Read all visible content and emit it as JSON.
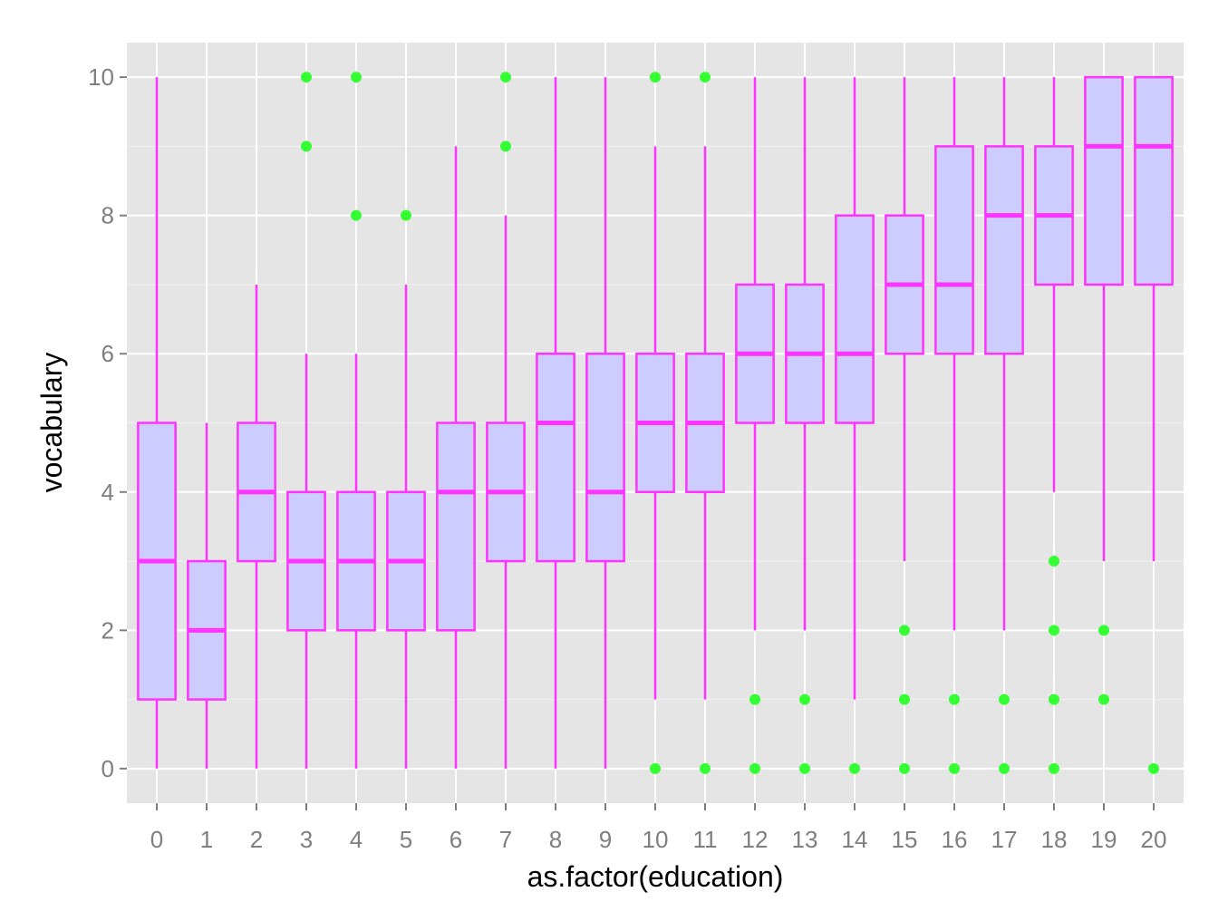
{
  "chart_data": {
    "type": "boxplot",
    "xlabel": "as.factor(education)",
    "ylabel": "vocabulary",
    "ylim": [
      -0.5,
      10.5
    ],
    "y_ticks": [
      0,
      2,
      4,
      6,
      8,
      10
    ],
    "grid": true,
    "colors": {
      "panel_background": "#e5e5e5",
      "grid_major": "#ffffff",
      "grid_minor": "#f2f2f2",
      "box_fill": "#ccccff",
      "box_line": "#ff33ff",
      "outlier": "#33ff33"
    },
    "categories": [
      "0",
      "1",
      "2",
      "3",
      "4",
      "5",
      "6",
      "7",
      "8",
      "9",
      "10",
      "11",
      "12",
      "13",
      "14",
      "15",
      "16",
      "17",
      "18",
      "19",
      "20"
    ],
    "boxes": [
      {
        "x": "0",
        "lower_whisker": 0,
        "q1": 1,
        "median": 3,
        "q3": 5,
        "upper_whisker": 10,
        "outliers": []
      },
      {
        "x": "1",
        "lower_whisker": 0,
        "q1": 1,
        "median": 2,
        "q3": 3,
        "upper_whisker": 5,
        "outliers": []
      },
      {
        "x": "2",
        "lower_whisker": 0,
        "q1": 3,
        "median": 4,
        "q3": 5,
        "upper_whisker": 7,
        "outliers": []
      },
      {
        "x": "3",
        "lower_whisker": 0,
        "q1": 2,
        "median": 3,
        "q3": 4,
        "upper_whisker": 6,
        "outliers": [
          9,
          10
        ]
      },
      {
        "x": "4",
        "lower_whisker": 0,
        "q1": 2,
        "median": 3,
        "q3": 4,
        "upper_whisker": 6,
        "outliers": [
          8,
          10
        ]
      },
      {
        "x": "5",
        "lower_whisker": 0,
        "q1": 2,
        "median": 3,
        "q3": 4,
        "upper_whisker": 7,
        "outliers": [
          8
        ]
      },
      {
        "x": "6",
        "lower_whisker": 0,
        "q1": 2,
        "median": 4,
        "q3": 5,
        "upper_whisker": 9,
        "outliers": []
      },
      {
        "x": "7",
        "lower_whisker": 0,
        "q1": 3,
        "median": 4,
        "q3": 5,
        "upper_whisker": 8,
        "outliers": [
          9,
          10
        ]
      },
      {
        "x": "8",
        "lower_whisker": 0,
        "q1": 3,
        "median": 5,
        "q3": 6,
        "upper_whisker": 10,
        "outliers": []
      },
      {
        "x": "9",
        "lower_whisker": 0,
        "q1": 3,
        "median": 4,
        "q3": 6,
        "upper_whisker": 10,
        "outliers": []
      },
      {
        "x": "10",
        "lower_whisker": 1,
        "q1": 4,
        "median": 5,
        "q3": 6,
        "upper_whisker": 9,
        "outliers": [
          0,
          10
        ]
      },
      {
        "x": "11",
        "lower_whisker": 1,
        "q1": 4,
        "median": 5,
        "q3": 6,
        "upper_whisker": 9,
        "outliers": [
          0,
          10
        ]
      },
      {
        "x": "12",
        "lower_whisker": 2,
        "q1": 5,
        "median": 6,
        "q3": 7,
        "upper_whisker": 10,
        "outliers": [
          0,
          1
        ]
      },
      {
        "x": "13",
        "lower_whisker": 2,
        "q1": 5,
        "median": 6,
        "q3": 7,
        "upper_whisker": 10,
        "outliers": [
          0,
          1
        ]
      },
      {
        "x": "14",
        "lower_whisker": 1,
        "q1": 5,
        "median": 6,
        "q3": 8,
        "upper_whisker": 10,
        "outliers": [
          0
        ]
      },
      {
        "x": "15",
        "lower_whisker": 3,
        "q1": 6,
        "median": 7,
        "q3": 8,
        "upper_whisker": 10,
        "outliers": [
          0,
          1,
          2
        ]
      },
      {
        "x": "16",
        "lower_whisker": 2,
        "q1": 6,
        "median": 7,
        "q3": 9,
        "upper_whisker": 10,
        "outliers": [
          0,
          1
        ]
      },
      {
        "x": "17",
        "lower_whisker": 2,
        "q1": 6,
        "median": 8,
        "q3": 9,
        "upper_whisker": 10,
        "outliers": [
          0,
          1
        ]
      },
      {
        "x": "18",
        "lower_whisker": 4,
        "q1": 7,
        "median": 8,
        "q3": 9,
        "upper_whisker": 10,
        "outliers": [
          0,
          1,
          2,
          3
        ]
      },
      {
        "x": "19",
        "lower_whisker": 3,
        "q1": 7,
        "median": 9,
        "q3": 10,
        "upper_whisker": 10,
        "outliers": [
          1,
          2
        ]
      },
      {
        "x": "20",
        "lower_whisker": 3,
        "q1": 7,
        "median": 9,
        "q3": 10,
        "upper_whisker": 10,
        "outliers": [
          0
        ]
      }
    ]
  }
}
